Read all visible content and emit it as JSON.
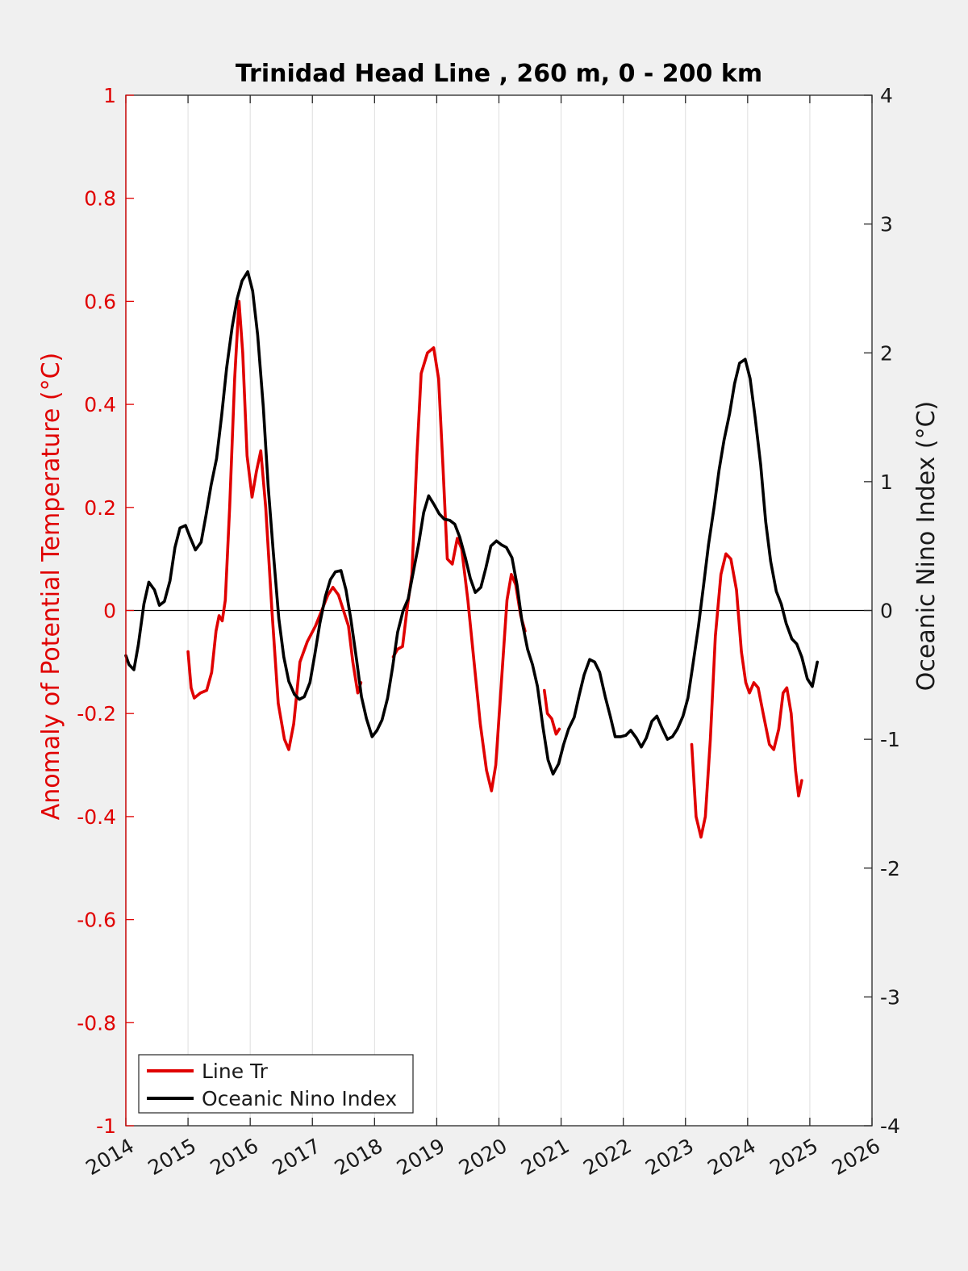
{
  "chart_data": {
    "type": "line",
    "title": "Trinidad Head Line , 260 m, 0 - 200 km",
    "ylabel_left": "Anomaly of Potential Temperature (°C)",
    "ylabel_right": "Oceanic Nino Index (°C)",
    "xlabel": "",
    "xlim": [
      2014,
      2026
    ],
    "ylim_left": [
      -1,
      1
    ],
    "ylim_right": [
      -4,
      4
    ],
    "x_ticks": [
      "2014",
      "2015",
      "2016",
      "2017",
      "2018",
      "2019",
      "2020",
      "2021",
      "2022",
      "2023",
      "2024",
      "2025",
      "2026"
    ],
    "y_ticks_left": [
      "1",
      "0.8",
      "0.6",
      "0.4",
      "0.2",
      "0",
      "-0.2",
      "-0.4",
      "-0.6",
      "-0.8",
      "-1"
    ],
    "y_ticks_right": [
      "4",
      "3",
      "2",
      "1",
      "0",
      "-1",
      "-2",
      "-3",
      "-4"
    ],
    "grid": "vertical",
    "zero_line": true,
    "legend_position": "bottom-left",
    "colors": {
      "line_tr": "#e00000",
      "oni": "#000000",
      "left_axis": "#e00000"
    },
    "series": [
      {
        "name": "Line Tr",
        "axis": "left",
        "color": "#e00000",
        "segments": [
          [
            [
              2015.0,
              -0.08
            ],
            [
              2015.05,
              -0.15
            ],
            [
              2015.1,
              -0.17
            ],
            [
              2015.2,
              -0.16
            ],
            [
              2015.3,
              -0.155
            ],
            [
              2015.38,
              -0.12
            ],
            [
              2015.45,
              -0.04
            ],
            [
              2015.5,
              -0.01
            ],
            [
              2015.55,
              -0.02
            ],
            [
              2015.6,
              0.02
            ],
            [
              2015.67,
              0.2
            ],
            [
              2015.75,
              0.45
            ],
            [
              2015.82,
              0.6
            ],
            [
              2015.88,
              0.5
            ],
            [
              2015.95,
              0.3
            ],
            [
              2016.03,
              0.22
            ],
            [
              2016.1,
              0.27
            ],
            [
              2016.17,
              0.31
            ],
            [
              2016.25,
              0.2
            ],
            [
              2016.35,
              0.0
            ],
            [
              2016.45,
              -0.18
            ],
            [
              2016.55,
              -0.25
            ],
            [
              2016.62,
              -0.27
            ],
            [
              2016.7,
              -0.22
            ],
            [
              2016.8,
              -0.1
            ],
            [
              2016.92,
              -0.06
            ],
            [
              2017.05,
              -0.03
            ],
            [
              2017.15,
              0.0
            ],
            [
              2017.25,
              0.03
            ],
            [
              2017.33,
              0.045
            ],
            [
              2017.42,
              0.03
            ],
            [
              2017.5,
              0.0
            ],
            [
              2017.58,
              -0.03
            ],
            [
              2017.65,
              -0.1
            ],
            [
              2017.73,
              -0.16
            ],
            [
              2017.78,
              -0.14
            ]
          ],
          [
            [
              2018.3,
              -0.09
            ],
            [
              2018.37,
              -0.075
            ],
            [
              2018.45,
              -0.07
            ],
            [
              2018.52,
              0.0
            ],
            [
              2018.6,
              0.07
            ],
            [
              2018.68,
              0.3
            ],
            [
              2018.75,
              0.46
            ],
            [
              2018.85,
              0.5
            ],
            [
              2018.95,
              0.51
            ],
            [
              2019.03,
              0.45
            ],
            [
              2019.1,
              0.28
            ],
            [
              2019.17,
              0.1
            ],
            [
              2019.25,
              0.09
            ],
            [
              2019.33,
              0.14
            ],
            [
              2019.4,
              0.12
            ],
            [
              2019.5,
              0.02
            ],
            [
              2019.6,
              -0.1
            ],
            [
              2019.7,
              -0.22
            ],
            [
              2019.8,
              -0.31
            ],
            [
              2019.88,
              -0.35
            ],
            [
              2019.95,
              -0.3
            ],
            [
              2020.05,
              -0.12
            ],
            [
              2020.13,
              0.02
            ],
            [
              2020.2,
              0.07
            ],
            [
              2020.27,
              0.05
            ],
            [
              2020.35,
              -0.01
            ],
            [
              2020.42,
              -0.04
            ]
          ],
          [
            [
              2020.73,
              -0.155
            ],
            [
              2020.78,
              -0.2
            ],
            [
              2020.85,
              -0.21
            ],
            [
              2020.92,
              -0.24
            ],
            [
              2020.97,
              -0.23
            ]
          ],
          [
            [
              2023.1,
              -0.26
            ],
            [
              2023.17,
              -0.4
            ],
            [
              2023.25,
              -0.44
            ],
            [
              2023.32,
              -0.4
            ],
            [
              2023.4,
              -0.25
            ],
            [
              2023.48,
              -0.05
            ],
            [
              2023.57,
              0.07
            ],
            [
              2023.65,
              0.11
            ],
            [
              2023.73,
              0.1
            ],
            [
              2023.82,
              0.04
            ],
            [
              2023.9,
              -0.08
            ],
            [
              2023.97,
              -0.14
            ],
            [
              2024.03,
              -0.16
            ],
            [
              2024.1,
              -0.14
            ],
            [
              2024.17,
              -0.15
            ],
            [
              2024.25,
              -0.2
            ],
            [
              2024.35,
              -0.26
            ],
            [
              2024.42,
              -0.27
            ],
            [
              2024.5,
              -0.23
            ],
            [
              2024.57,
              -0.16
            ],
            [
              2024.63,
              -0.15
            ],
            [
              2024.7,
              -0.2
            ],
            [
              2024.77,
              -0.31
            ],
            [
              2024.82,
              -0.36
            ],
            [
              2024.87,
              -0.33
            ]
          ]
        ]
      },
      {
        "name": "Oceanic Nino Index",
        "axis": "right",
        "color": "#000000",
        "points": [
          [
            2014.0,
            -0.35
          ],
          [
            2014.05,
            -0.42
          ],
          [
            2014.13,
            -0.46
          ],
          [
            2014.2,
            -0.27
          ],
          [
            2014.29,
            0.05
          ],
          [
            2014.37,
            0.22
          ],
          [
            2014.46,
            0.16
          ],
          [
            2014.54,
            0.04
          ],
          [
            2014.62,
            0.07
          ],
          [
            2014.71,
            0.23
          ],
          [
            2014.79,
            0.49
          ],
          [
            2014.87,
            0.64
          ],
          [
            2014.96,
            0.66
          ],
          [
            2015.04,
            0.56
          ],
          [
            2015.12,
            0.47
          ],
          [
            2015.21,
            0.53
          ],
          [
            2015.29,
            0.74
          ],
          [
            2015.37,
            0.97
          ],
          [
            2015.46,
            1.18
          ],
          [
            2015.54,
            1.51
          ],
          [
            2015.62,
            1.88
          ],
          [
            2015.71,
            2.2
          ],
          [
            2015.79,
            2.42
          ],
          [
            2015.87,
            2.56
          ],
          [
            2015.96,
            2.63
          ],
          [
            2016.04,
            2.48
          ],
          [
            2016.12,
            2.14
          ],
          [
            2016.21,
            1.58
          ],
          [
            2016.29,
            0.96
          ],
          [
            2016.37,
            0.46
          ],
          [
            2016.46,
            -0.06
          ],
          [
            2016.54,
            -0.36
          ],
          [
            2016.62,
            -0.55
          ],
          [
            2016.71,
            -0.65
          ],
          [
            2016.79,
            -0.69
          ],
          [
            2016.87,
            -0.67
          ],
          [
            2016.96,
            -0.56
          ],
          [
            2017.04,
            -0.34
          ],
          [
            2017.12,
            -0.1
          ],
          [
            2017.21,
            0.11
          ],
          [
            2017.29,
            0.24
          ],
          [
            2017.37,
            0.3
          ],
          [
            2017.46,
            0.31
          ],
          [
            2017.54,
            0.16
          ],
          [
            2017.62,
            -0.07
          ],
          [
            2017.71,
            -0.38
          ],
          [
            2017.79,
            -0.67
          ],
          [
            2017.87,
            -0.84
          ],
          [
            2017.96,
            -0.98
          ],
          [
            2018.04,
            -0.93
          ],
          [
            2018.12,
            -0.85
          ],
          [
            2018.21,
            -0.68
          ],
          [
            2018.29,
            -0.44
          ],
          [
            2018.37,
            -0.17
          ],
          [
            2018.46,
            0.0
          ],
          [
            2018.54,
            0.09
          ],
          [
            2018.62,
            0.29
          ],
          [
            2018.71,
            0.52
          ],
          [
            2018.79,
            0.76
          ],
          [
            2018.87,
            0.89
          ],
          [
            2018.96,
            0.82
          ],
          [
            2019.04,
            0.75
          ],
          [
            2019.12,
            0.71
          ],
          [
            2019.21,
            0.7
          ],
          [
            2019.29,
            0.67
          ],
          [
            2019.37,
            0.57
          ],
          [
            2019.46,
            0.41
          ],
          [
            2019.54,
            0.25
          ],
          [
            2019.62,
            0.14
          ],
          [
            2019.71,
            0.18
          ],
          [
            2019.79,
            0.33
          ],
          [
            2019.87,
            0.5
          ],
          [
            2019.96,
            0.54
          ],
          [
            2020.04,
            0.51
          ],
          [
            2020.12,
            0.49
          ],
          [
            2020.21,
            0.41
          ],
          [
            2020.29,
            0.2
          ],
          [
            2020.37,
            -0.08
          ],
          [
            2020.46,
            -0.3
          ],
          [
            2020.54,
            -0.42
          ],
          [
            2020.62,
            -0.59
          ],
          [
            2020.71,
            -0.91
          ],
          [
            2020.79,
            -1.16
          ],
          [
            2020.87,
            -1.27
          ],
          [
            2020.96,
            -1.19
          ],
          [
            2021.04,
            -1.04
          ],
          [
            2021.12,
            -0.92
          ],
          [
            2021.21,
            -0.83
          ],
          [
            2021.29,
            -0.66
          ],
          [
            2021.37,
            -0.5
          ],
          [
            2021.46,
            -0.38
          ],
          [
            2021.54,
            -0.4
          ],
          [
            2021.62,
            -0.48
          ],
          [
            2021.71,
            -0.67
          ],
          [
            2021.79,
            -0.82
          ],
          [
            2021.87,
            -0.98
          ],
          [
            2021.96,
            -0.98
          ],
          [
            2022.04,
            -0.97
          ],
          [
            2022.12,
            -0.93
          ],
          [
            2022.21,
            -0.99
          ],
          [
            2022.29,
            -1.06
          ],
          [
            2022.37,
            -0.99
          ],
          [
            2022.46,
            -0.86
          ],
          [
            2022.54,
            -0.82
          ],
          [
            2022.62,
            -0.91
          ],
          [
            2022.71,
            -1.0
          ],
          [
            2022.79,
            -0.98
          ],
          [
            2022.87,
            -0.92
          ],
          [
            2022.96,
            -0.82
          ],
          [
            2023.04,
            -0.68
          ],
          [
            2023.12,
            -0.42
          ],
          [
            2023.21,
            -0.12
          ],
          [
            2023.29,
            0.19
          ],
          [
            2023.37,
            0.51
          ],
          [
            2023.46,
            0.8
          ],
          [
            2023.54,
            1.09
          ],
          [
            2023.62,
            1.32
          ],
          [
            2023.71,
            1.53
          ],
          [
            2023.79,
            1.76
          ],
          [
            2023.87,
            1.92
          ],
          [
            2023.96,
            1.95
          ],
          [
            2024.04,
            1.8
          ],
          [
            2024.12,
            1.5
          ],
          [
            2024.21,
            1.13
          ],
          [
            2024.29,
            0.69
          ],
          [
            2024.37,
            0.38
          ],
          [
            2024.46,
            0.15
          ],
          [
            2024.54,
            0.05
          ],
          [
            2024.62,
            -0.1
          ],
          [
            2024.71,
            -0.22
          ],
          [
            2024.79,
            -0.26
          ],
          [
            2024.87,
            -0.36
          ],
          [
            2024.96,
            -0.53
          ],
          [
            2025.04,
            -0.59
          ],
          [
            2025.12,
            -0.4
          ]
        ]
      }
    ]
  }
}
